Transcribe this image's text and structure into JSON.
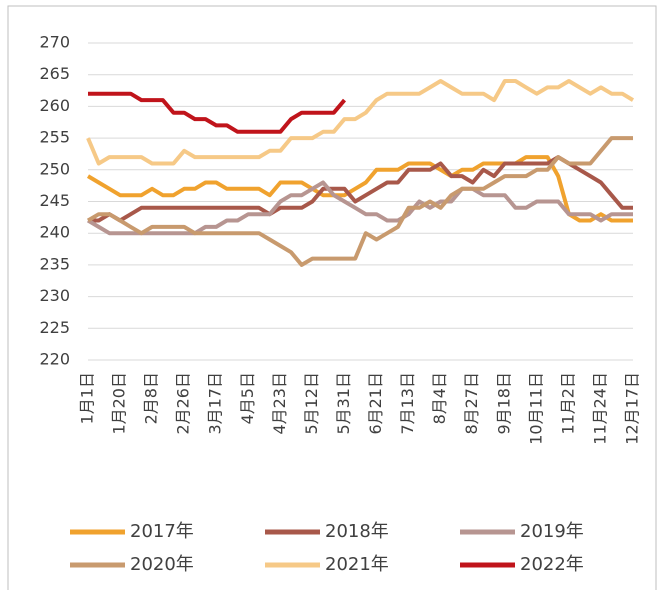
{
  "chart_data": {
    "type": "line",
    "categories": [
      "1月1日",
      null,
      null,
      "1月20日",
      null,
      null,
      "2月8日",
      null,
      null,
      "2月26日",
      null,
      null,
      "3月17日",
      null,
      null,
      "4月5日",
      null,
      null,
      "4月23日",
      null,
      null,
      "5月12日",
      null,
      null,
      "5月31日",
      null,
      null,
      "6月21日",
      null,
      null,
      "7月13日",
      null,
      null,
      "8月4日",
      null,
      null,
      "8月27日",
      null,
      null,
      "9月18日",
      null,
      null,
      "10月11日",
      null,
      null,
      "11月2日",
      null,
      null,
      "11月24日",
      null,
      null,
      "12月17日"
    ],
    "ylim": [
      220,
      270
    ],
    "yticks": [
      220,
      225,
      230,
      235,
      240,
      245,
      250,
      255,
      260,
      265,
      270
    ],
    "grid": true,
    "series": [
      {
        "name": "2017年",
        "color": "#f0a22e",
        "values": [
          249,
          248,
          247,
          246,
          246,
          246,
          247,
          246,
          246,
          247,
          247,
          248,
          248,
          247,
          247,
          247,
          247,
          246,
          248,
          248,
          248,
          247,
          246,
          246,
          246,
          247,
          248,
          250,
          250,
          250,
          251,
          251,
          251,
          250,
          249,
          250,
          250,
          251,
          251,
          251,
          251,
          252,
          252,
          252,
          249,
          243,
          242,
          242,
          243,
          242,
          242,
          242
        ]
      },
      {
        "name": "2018年",
        "color": "#a8584a",
        "values": [
          242,
          242,
          243,
          242,
          243,
          244,
          244,
          244,
          244,
          244,
          244,
          244,
          244,
          244,
          244,
          244,
          244,
          243,
          244,
          244,
          244,
          245,
          247,
          247,
          247,
          245,
          246,
          247,
          248,
          248,
          250,
          250,
          250,
          251,
          249,
          249,
          248,
          250,
          249,
          251,
          251,
          251,
          251,
          251,
          252,
          251,
          250,
          249,
          248,
          246,
          244,
          244
        ]
      },
      {
        "name": "2019年",
        "color": "#b79591",
        "values": [
          242,
          241,
          240,
          240,
          240,
          240,
          240,
          240,
          240,
          240,
          240,
          241,
          241,
          242,
          242,
          243,
          243,
          243,
          245,
          246,
          246,
          247,
          248,
          246,
          245,
          244,
          243,
          243,
          242,
          242,
          243,
          245,
          244,
          245,
          245,
          247,
          247,
          246,
          246,
          246,
          244,
          244,
          245,
          245,
          245,
          243,
          243,
          243,
          242,
          243,
          243,
          243
        ]
      },
      {
        "name": "2020年",
        "color": "#c89a6e",
        "values": [
          242,
          243,
          243,
          242,
          241,
          240,
          241,
          241,
          241,
          241,
          240,
          240,
          240,
          240,
          240,
          240,
          240,
          239,
          238,
          237,
          235,
          236,
          236,
          236,
          236,
          236,
          240,
          239,
          240,
          241,
          244,
          244,
          245,
          244,
          246,
          247,
          247,
          247,
          248,
          249,
          249,
          249,
          250,
          250,
          252,
          251,
          251,
          251,
          253,
          255,
          255,
          255
        ]
      },
      {
        "name": "2021年",
        "color": "#f6c987",
        "values": [
          255,
          251,
          252,
          252,
          252,
          252,
          251,
          251,
          251,
          253,
          252,
          252,
          252,
          252,
          252,
          252,
          252,
          253,
          253,
          255,
          255,
          255,
          256,
          256,
          258,
          258,
          259,
          261,
          262,
          262,
          262,
          262,
          263,
          264,
          263,
          262,
          262,
          262,
          261,
          264,
          264,
          263,
          262,
          263,
          263,
          264,
          263,
          262,
          263,
          262,
          262,
          261
        ]
      },
      {
        "name": "2022年",
        "color": "#c0141b",
        "values": [
          262,
          262,
          262,
          262,
          262,
          261,
          261,
          261,
          259,
          259,
          258,
          258,
          257,
          257,
          256,
          256,
          256,
          256,
          256,
          258,
          259,
          259,
          259,
          259,
          261,
          null,
          null,
          null,
          null,
          null,
          null,
          null,
          null,
          null,
          null,
          null,
          null,
          null,
          null,
          null,
          null,
          null,
          null,
          null,
          null,
          null,
          null,
          null,
          null,
          null,
          null,
          null
        ]
      }
    ]
  }
}
